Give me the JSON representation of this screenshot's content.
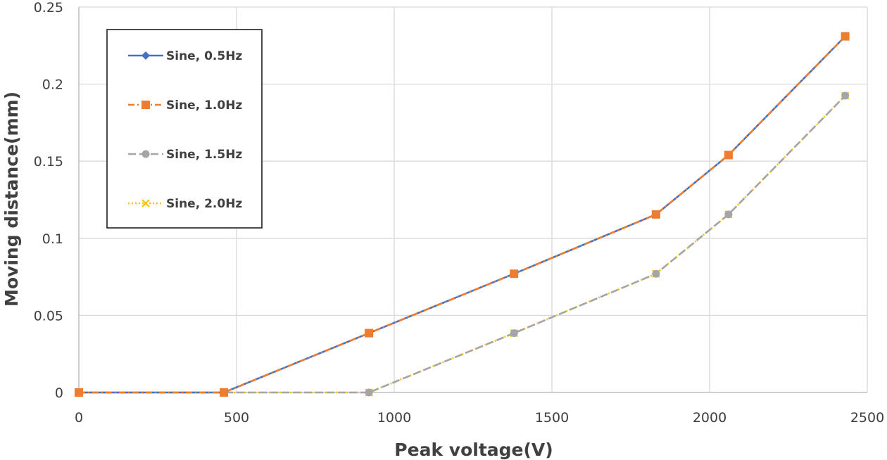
{
  "chart_data": {
    "type": "line",
    "title": "",
    "xlabel": "Peak voltage(V)",
    "ylabel": "Moving distance(mm)",
    "xlim": [
      0,
      2500
    ],
    "ylim": [
      0,
      0.25
    ],
    "xticks": [
      0,
      500,
      1000,
      1500,
      2000,
      2500
    ],
    "yticks": [
      0,
      0.05,
      0.1,
      0.15,
      0.2,
      0.25
    ],
    "xtick_labels": [
      "0",
      "500",
      "1000",
      "1500",
      "2000",
      "2500"
    ],
    "ytick_labels": [
      "0",
      "0.05",
      "0.1",
      "0.15",
      "0.2",
      "0.25"
    ],
    "grid": true,
    "legend_position": "top-left",
    "series": [
      {
        "name": "Sine, 0.5Hz",
        "color": "#4472C4",
        "marker": "diamond",
        "line": "solid",
        "x": [
          0,
          460,
          920,
          1380,
          1830,
          2060,
          2430
        ],
        "y": [
          0,
          0,
          0.0385,
          0.077,
          0.1155,
          0.154,
          0.231
        ]
      },
      {
        "name": "Sine, 1.0Hz",
        "color": "#ED7D31",
        "marker": "square",
        "line": "dashdot",
        "x": [
          0,
          460,
          920,
          1380,
          1830,
          2060,
          2430
        ],
        "y": [
          0,
          0,
          0.0385,
          0.077,
          0.1155,
          0.154,
          0.231
        ]
      },
      {
        "name": "Sine, 1.5Hz",
        "color": "#A5A5A5",
        "marker": "circle",
        "line": "longdash",
        "x": [
          0,
          460,
          920,
          1380,
          1830,
          2060,
          2430
        ],
        "y": [
          0,
          0,
          0,
          0.0385,
          0.077,
          0.1155,
          0.1925
        ]
      },
      {
        "name": "Sine, 2.0Hz",
        "color": "#FFC000",
        "marker": "x",
        "line": "dotted",
        "x": [
          0,
          460,
          920,
          1380,
          1830,
          2060,
          2430
        ],
        "y": [
          0,
          0,
          0,
          0.0385,
          0.077,
          0.1155,
          0.1925
        ]
      }
    ]
  }
}
